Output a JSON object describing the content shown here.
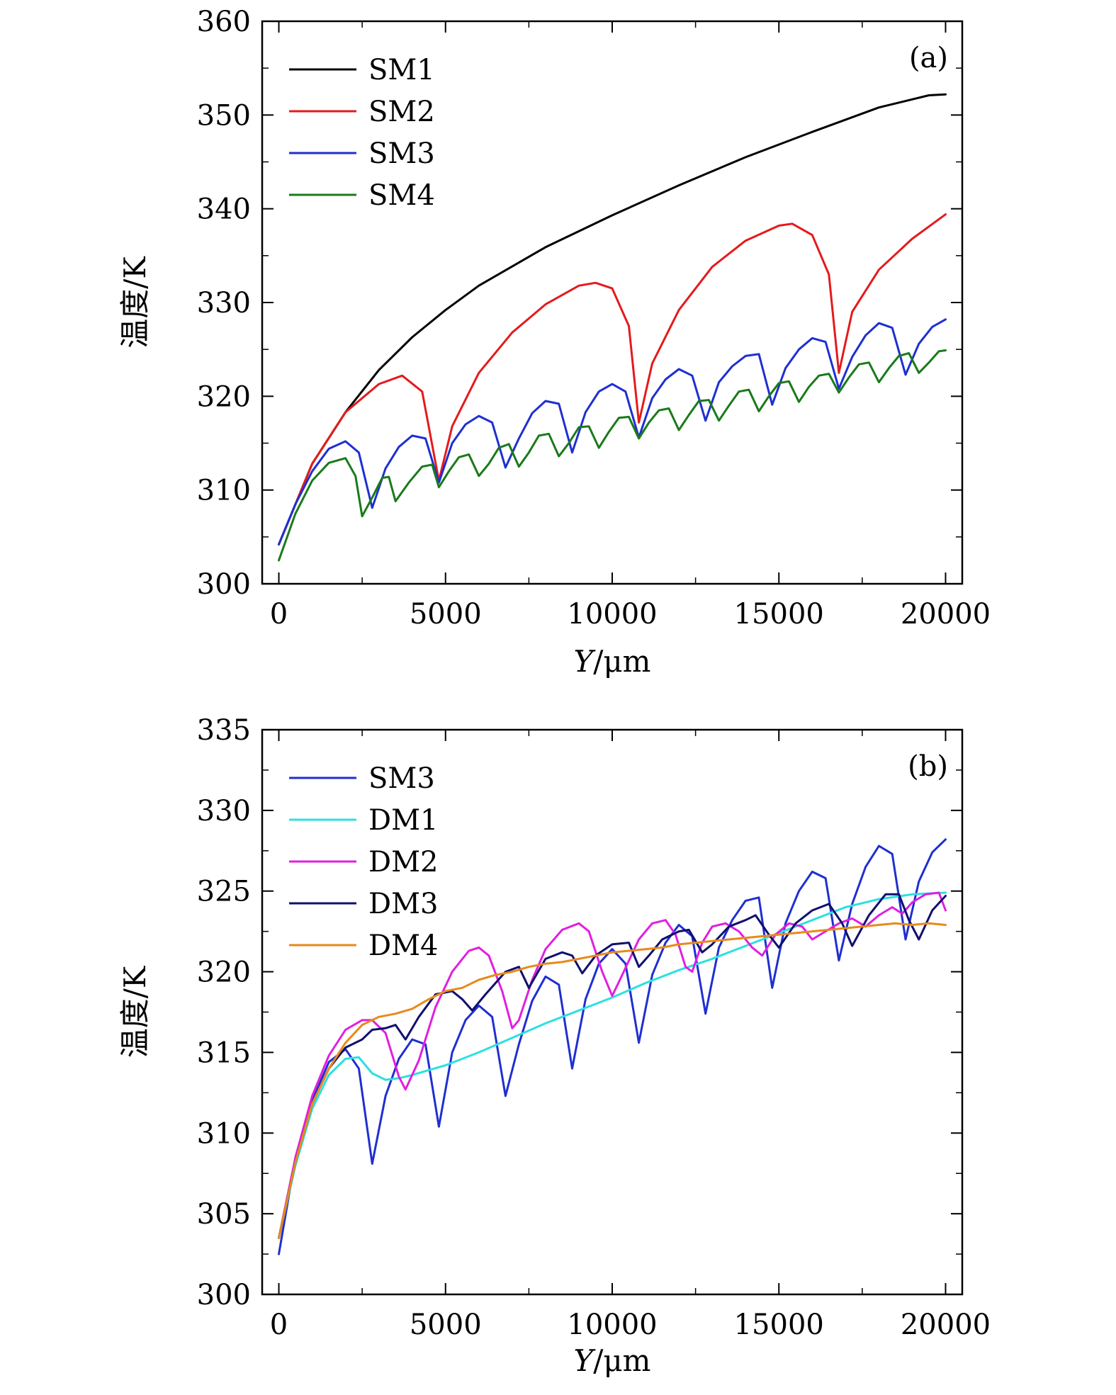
{
  "chart_data": [
    {
      "type": "line",
      "panel_label": "(a)",
      "xlabel_var": "Y",
      "xlabel_unit": "/μm",
      "ylabel": "温度/K",
      "xlim": [
        -500,
        20500
      ],
      "ylim": [
        300,
        360
      ],
      "xticks": [
        0,
        5000,
        10000,
        15000,
        20000
      ],
      "xtick_labels": [
        "0",
        "5000",
        "10000",
        "15000",
        "20000"
      ],
      "yticks": [
        300,
        310,
        320,
        330,
        340,
        350,
        360
      ],
      "ytick_labels": [
        "300",
        "310",
        "320",
        "330",
        "340",
        "350",
        "360"
      ],
      "legend_position": "top-left",
      "series": [
        {
          "name": "SM1",
          "color": "#000000",
          "x": [
            0,
            1000,
            2000,
            3000,
            4000,
            5000,
            6000,
            8000,
            10000,
            12000,
            14000,
            16000,
            18000,
            19500,
            20000
          ],
          "y": [
            304.2,
            312.8,
            318.3,
            322.8,
            326.3,
            329.2,
            331.8,
            335.9,
            339.3,
            342.5,
            345.5,
            348.2,
            350.8,
            352.1,
            352.2
          ]
        },
        {
          "name": "SM2",
          "color": "#e41a1c",
          "x": [
            0,
            1000,
            2000,
            3000,
            3700,
            4300,
            4800,
            5200,
            6000,
            7000,
            8000,
            9000,
            9500,
            10000,
            10500,
            10800,
            11200,
            12000,
            13000,
            14000,
            15000,
            15400,
            16000,
            16500,
            16800,
            17200,
            18000,
            19000,
            20000
          ],
          "y": [
            304.2,
            312.8,
            318.3,
            321.3,
            322.2,
            320.5,
            311.0,
            316.8,
            322.5,
            326.8,
            329.8,
            331.8,
            332.1,
            331.5,
            327.5,
            317.2,
            323.5,
            329.2,
            333.8,
            336.6,
            338.2,
            338.4,
            337.2,
            333.0,
            322.5,
            329.0,
            333.5,
            336.8,
            339.4
          ]
        },
        {
          "name": "SM3",
          "color": "#1f2fd0",
          "x": [
            0,
            500,
            1000,
            1500,
            2000,
            2400,
            2800,
            3200,
            3600,
            4000,
            4400,
            4800,
            5200,
            5600,
            6000,
            6400,
            6800,
            7200,
            7600,
            8000,
            8400,
            8800,
            9200,
            9600,
            10000,
            10400,
            10800,
            11200,
            11600,
            12000,
            12400,
            12800,
            13200,
            13600,
            14000,
            14400,
            14800,
            15200,
            15600,
            16000,
            16400,
            16800,
            17200,
            17600,
            18000,
            18400,
            18800,
            19200,
            19600,
            20000
          ],
          "y": [
            304.2,
            308.5,
            312.0,
            314.4,
            315.2,
            314.0,
            308.1,
            312.3,
            314.6,
            315.8,
            315.5,
            310.8,
            315.0,
            317.0,
            317.9,
            317.2,
            312.4,
            315.5,
            318.2,
            319.5,
            319.2,
            314.0,
            318.3,
            320.5,
            321.3,
            320.5,
            315.6,
            319.8,
            321.8,
            322.9,
            322.2,
            317.4,
            321.5,
            323.2,
            324.3,
            324.5,
            319.1,
            323.0,
            325.0,
            326.2,
            325.8,
            320.8,
            324.2,
            326.5,
            327.8,
            327.3,
            322.3,
            325.6,
            327.4,
            328.2
          ]
        },
        {
          "name": "SM4",
          "color": "#1a7a1a",
          "x": [
            0,
            500,
            1000,
            1500,
            2000,
            2300,
            2500,
            2800,
            3100,
            3300,
            3500,
            3900,
            4300,
            4600,
            4800,
            5100,
            5400,
            5700,
            6000,
            6300,
            6600,
            6900,
            7200,
            7500,
            7800,
            8100,
            8400,
            8700,
            9000,
            9300,
            9600,
            9900,
            10200,
            10500,
            10800,
            11100,
            11400,
            11700,
            12000,
            12300,
            12600,
            12900,
            13200,
            13500,
            13800,
            14100,
            14400,
            14700,
            15000,
            15300,
            15600,
            15900,
            16200,
            16500,
            16800,
            17100,
            17400,
            17700,
            18000,
            18300,
            18600,
            18900,
            19200,
            19500,
            19800,
            20000
          ],
          "y": [
            302.5,
            307.5,
            311.0,
            312.9,
            313.4,
            311.5,
            307.2,
            309.2,
            311.3,
            311.4,
            308.8,
            310.8,
            312.5,
            312.7,
            310.3,
            312.0,
            313.5,
            313.8,
            311.5,
            312.8,
            314.5,
            314.9,
            312.5,
            314.0,
            315.8,
            316.0,
            313.6,
            315.0,
            316.7,
            316.8,
            314.5,
            316.2,
            317.7,
            317.8,
            315.5,
            317.2,
            318.5,
            318.7,
            316.4,
            318.0,
            319.5,
            319.6,
            317.4,
            319.0,
            320.5,
            320.7,
            318.4,
            320.0,
            321.4,
            321.6,
            319.4,
            321.0,
            322.2,
            322.4,
            320.4,
            322.0,
            323.4,
            323.6,
            321.5,
            323.0,
            324.3,
            324.6,
            322.5,
            323.6,
            324.8,
            324.9
          ]
        }
      ]
    },
    {
      "type": "line",
      "panel_label": "(b)",
      "xlabel_var": "Y",
      "xlabel_unit": "/μm",
      "ylabel": "温度/K",
      "xlim": [
        -500,
        20500
      ],
      "ylim": [
        300,
        335
      ],
      "xticks": [
        0,
        5000,
        10000,
        15000,
        20000
      ],
      "xtick_labels": [
        "0",
        "5000",
        "10000",
        "15000",
        "20000"
      ],
      "yticks": [
        300,
        305,
        310,
        315,
        320,
        325,
        330,
        335
      ],
      "ytick_labels": [
        "300",
        "305",
        "310",
        "315",
        "320",
        "325",
        "330",
        "335"
      ],
      "legend_position": "top-left",
      "series": [
        {
          "name": "SM3",
          "color": "#1f2fd0",
          "x": [
            0,
            500,
            1000,
            1500,
            2000,
            2400,
            2800,
            3200,
            3600,
            4000,
            4400,
            4800,
            5200,
            5600,
            6000,
            6400,
            6800,
            7200,
            7600,
            8000,
            8400,
            8800,
            9200,
            9600,
            10000,
            10400,
            10800,
            11200,
            11600,
            12000,
            12400,
            12800,
            13200,
            13600,
            14000,
            14400,
            14800,
            15200,
            15600,
            16000,
            16400,
            16800,
            17200,
            17600,
            18000,
            18400,
            18800,
            19200,
            19600,
            20000
          ],
          "y": [
            302.5,
            308.5,
            312.0,
            314.4,
            315.2,
            314.0,
            308.1,
            312.3,
            314.6,
            315.8,
            315.5,
            310.4,
            315.0,
            317.0,
            317.9,
            317.2,
            312.3,
            315.5,
            318.2,
            319.7,
            319.2,
            314.0,
            318.3,
            320.5,
            321.4,
            320.5,
            315.6,
            319.8,
            321.8,
            322.9,
            322.2,
            317.4,
            321.5,
            323.2,
            324.4,
            324.6,
            319.0,
            323.0,
            325.0,
            326.2,
            325.8,
            320.7,
            324.2,
            326.5,
            327.8,
            327.3,
            322.0,
            325.6,
            327.4,
            328.2
          ]
        },
        {
          "name": "DM1",
          "color": "#2de0e0",
          "x": [
            0,
            500,
            1000,
            1500,
            2000,
            2400,
            2800,
            3200,
            3600,
            4000,
            5000,
            6000,
            7000,
            8000,
            9000,
            10000,
            11000,
            12000,
            13000,
            14000,
            15000,
            16000,
            17000,
            18000,
            19000,
            20000
          ],
          "y": [
            303.5,
            308.0,
            311.5,
            313.6,
            314.6,
            314.7,
            313.7,
            313.3,
            313.4,
            313.6,
            314.2,
            315.0,
            315.9,
            316.8,
            317.6,
            318.4,
            319.3,
            320.1,
            320.8,
            321.6,
            322.4,
            323.2,
            324.0,
            324.5,
            324.8,
            324.9
          ]
        },
        {
          "name": "DM2",
          "color": "#e01fe0",
          "x": [
            0,
            500,
            1000,
            1500,
            2000,
            2500,
            2800,
            3200,
            3600,
            3800,
            4200,
            4700,
            5200,
            5700,
            6000,
            6300,
            6700,
            7000,
            7200,
            7600,
            8000,
            8500,
            9000,
            9300,
            9700,
            10000,
            10300,
            10800,
            11200,
            11600,
            11900,
            12200,
            12400,
            12700,
            13000,
            13400,
            13800,
            14200,
            14500,
            14900,
            15300,
            15700,
            16000,
            16400,
            16800,
            17200,
            17600,
            18000,
            18400,
            18700,
            19000,
            19400,
            19800,
            20000
          ],
          "y": [
            303.5,
            308.5,
            312.3,
            314.8,
            316.4,
            317.0,
            317.0,
            316.2,
            313.5,
            312.7,
            314.5,
            317.8,
            320.0,
            321.3,
            321.5,
            321.0,
            318.8,
            316.5,
            317.0,
            319.5,
            321.4,
            322.6,
            323.0,
            322.5,
            320.0,
            318.5,
            319.8,
            322.0,
            323.0,
            323.2,
            322.3,
            320.3,
            320.0,
            321.8,
            322.8,
            323.0,
            322.5,
            321.5,
            321.0,
            322.3,
            323.0,
            322.8,
            322.0,
            322.5,
            323.0,
            323.3,
            322.8,
            323.5,
            324.0,
            323.6,
            324.3,
            324.8,
            324.9,
            323.8
          ]
        },
        {
          "name": "DM3",
          "color": "#10106e",
          "x": [
            0,
            500,
            1000,
            1500,
            2000,
            2500,
            2800,
            3200,
            3500,
            3800,
            4200,
            4700,
            5200,
            5500,
            5800,
            6200,
            6800,
            7200,
            7500,
            8000,
            8500,
            8800,
            9100,
            9500,
            10000,
            10500,
            10800,
            11100,
            11500,
            12000,
            12300,
            12700,
            13000,
            13500,
            14000,
            14300,
            14700,
            15000,
            15500,
            16000,
            16500,
            16900,
            17200,
            17700,
            18200,
            18600,
            18900,
            19200,
            19600,
            20000
          ],
          "y": [
            303.5,
            308.2,
            311.8,
            314.0,
            315.3,
            315.8,
            316.4,
            316.5,
            316.7,
            315.8,
            317.2,
            318.6,
            318.8,
            318.3,
            317.6,
            318.6,
            320.0,
            320.3,
            319.0,
            320.8,
            321.2,
            321.0,
            319.9,
            321.0,
            321.7,
            321.8,
            320.3,
            321.0,
            322.0,
            322.5,
            322.6,
            321.2,
            321.7,
            322.8,
            323.2,
            323.5,
            322.3,
            321.5,
            323.0,
            323.8,
            324.2,
            323.0,
            321.6,
            323.5,
            324.8,
            324.8,
            323.2,
            322.0,
            323.8,
            324.7
          ]
        },
        {
          "name": "DM4",
          "color": "#e88a1a",
          "x": [
            0,
            500,
            1000,
            1500,
            2000,
            2500,
            3000,
            3500,
            4000,
            4500,
            5000,
            5500,
            6000,
            6500,
            7000,
            7500,
            8000,
            8500,
            9000,
            9500,
            10000,
            10500,
            11000,
            11500,
            12000,
            12500,
            13000,
            13500,
            14000,
            14500,
            15000,
            15500,
            16000,
            16500,
            17000,
            17500,
            18000,
            18500,
            19000,
            19500,
            20000
          ],
          "y": [
            303.5,
            308.2,
            311.8,
            314.0,
            315.6,
            316.7,
            317.2,
            317.4,
            317.7,
            318.3,
            318.8,
            319.0,
            319.5,
            319.8,
            320.0,
            320.3,
            320.5,
            320.6,
            320.8,
            321.0,
            321.2,
            321.3,
            321.4,
            321.5,
            321.7,
            321.8,
            321.9,
            322.0,
            322.1,
            322.2,
            322.3,
            322.4,
            322.5,
            322.6,
            322.7,
            322.8,
            322.9,
            323.0,
            322.9,
            323.0,
            322.9
          ]
        }
      ]
    }
  ]
}
